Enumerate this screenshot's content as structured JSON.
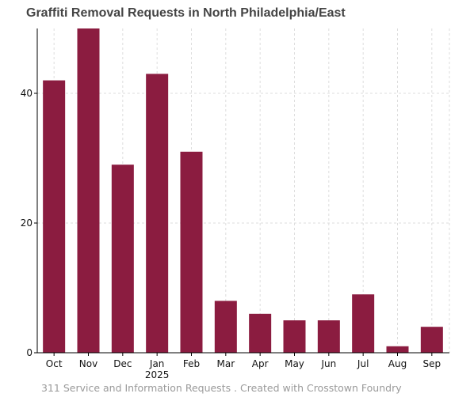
{
  "title": "Graffiti Removal Requests in North Philadelphia/East",
  "footer": "311 Service and Information Requests . Created with Crosstown Foundry",
  "chart_data": {
    "type": "bar",
    "categories": [
      "Oct",
      "Nov",
      "Dec",
      "Jan",
      "Feb",
      "Mar",
      "Apr",
      "May",
      "Jun",
      "Jul",
      "Aug",
      "Sep"
    ],
    "category_sublabels": [
      "",
      "",
      "",
      "2025",
      "",
      "",
      "",
      "",
      "",
      "",
      "",
      ""
    ],
    "values": [
      42,
      50,
      29,
      43,
      31,
      8,
      6,
      5,
      5,
      9,
      1,
      4
    ],
    "ylim": [
      0,
      50
    ],
    "yticks": [
      0,
      20,
      40
    ],
    "grid": true,
    "bar_color": "#8b1c40",
    "grid_color": "#dddddd"
  }
}
